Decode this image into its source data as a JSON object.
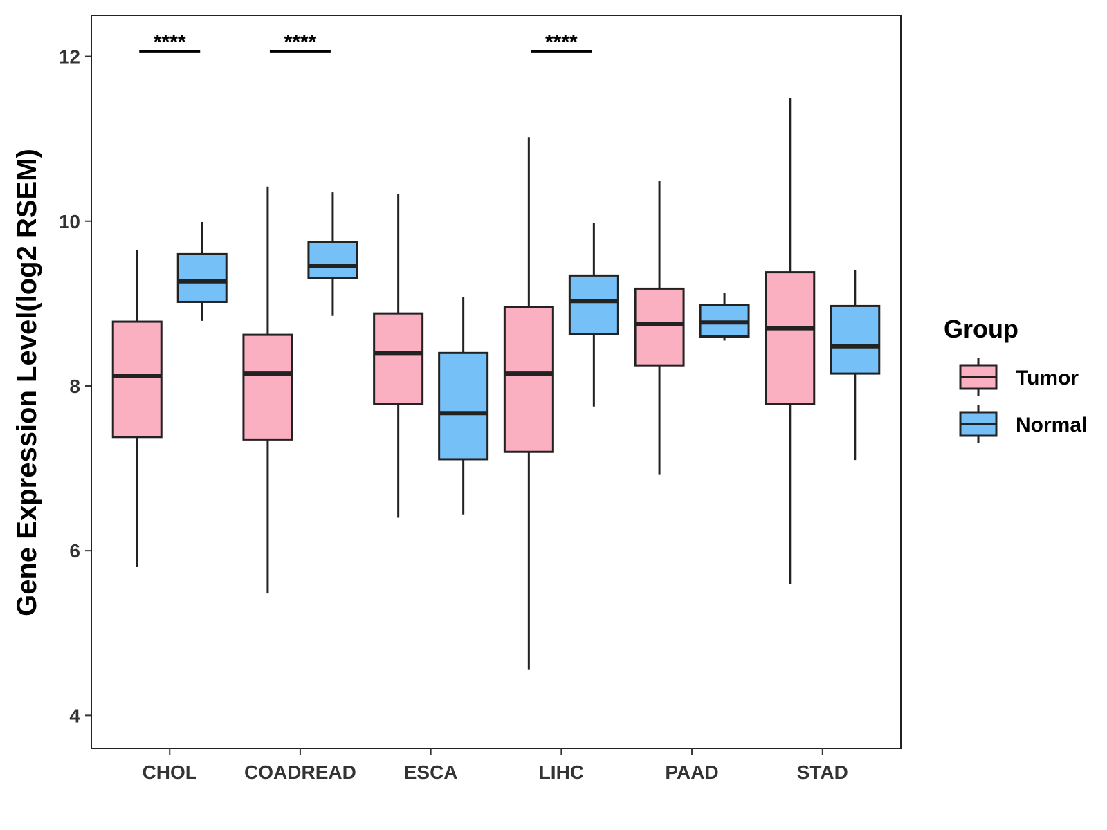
{
  "chart_data": {
    "type": "box",
    "title": "",
    "xlabel": "",
    "ylabel": "Gene Expression Level(log2 RSEM)",
    "ylim": [
      3.6,
      12.5
    ],
    "yticks": [
      4,
      6,
      8,
      10,
      12
    ],
    "grid": false,
    "legend_position": "right",
    "categories": [
      "CHOL",
      "COADREAD",
      "ESCA",
      "LIHC",
      "PAAD",
      "STAD"
    ],
    "legend": {
      "title": "Group",
      "entries": [
        {
          "name": "Tumor",
          "color": "#FBB0C1"
        },
        {
          "name": "Normal",
          "color": "#76C0F8"
        }
      ]
    },
    "series": [
      {
        "name": "Tumor",
        "color": "#FBB0C1",
        "boxes": [
          {
            "category": "CHOL",
            "whisker_low": 5.8,
            "q1": 7.38,
            "median": 8.12,
            "q3": 8.78,
            "whisker_high": 9.65
          },
          {
            "category": "COADREAD",
            "whisker_low": 5.48,
            "q1": 7.35,
            "median": 8.15,
            "q3": 8.62,
            "whisker_high": 10.42
          },
          {
            "category": "ESCA",
            "whisker_low": 6.4,
            "q1": 7.78,
            "median": 8.4,
            "q3": 8.88,
            "whisker_high": 10.33
          },
          {
            "category": "LIHC",
            "whisker_low": 4.56,
            "q1": 7.2,
            "median": 8.15,
            "q3": 8.96,
            "whisker_high": 11.02
          },
          {
            "category": "PAAD",
            "whisker_low": 6.92,
            "q1": 8.25,
            "median": 8.75,
            "q3": 9.18,
            "whisker_high": 10.49
          },
          {
            "category": "STAD",
            "whisker_low": 5.59,
            "q1": 7.78,
            "median": 8.7,
            "q3": 9.38,
            "whisker_high": 11.5
          }
        ]
      },
      {
        "name": "Normal",
        "color": "#76C0F8",
        "boxes": [
          {
            "category": "CHOL",
            "whisker_low": 8.79,
            "q1": 9.02,
            "median": 9.27,
            "q3": 9.6,
            "whisker_high": 9.99
          },
          {
            "category": "COADREAD",
            "whisker_low": 8.85,
            "q1": 9.31,
            "median": 9.46,
            "q3": 9.75,
            "whisker_high": 10.35
          },
          {
            "category": "ESCA",
            "whisker_low": 6.44,
            "q1": 7.11,
            "median": 7.67,
            "q3": 8.4,
            "whisker_high": 9.08
          },
          {
            "category": "LIHC",
            "whisker_low": 7.75,
            "q1": 8.63,
            "median": 9.03,
            "q3": 9.34,
            "whisker_high": 9.98
          },
          {
            "category": "PAAD",
            "whisker_low": 8.55,
            "q1": 8.6,
            "median": 8.77,
            "q3": 8.98,
            "whisker_high": 9.13
          },
          {
            "category": "STAD",
            "whisker_low": 7.1,
            "q1": 8.15,
            "median": 8.48,
            "q3": 8.97,
            "whisker_high": 9.41
          }
        ]
      }
    ],
    "annotations": [
      {
        "category": "CHOL",
        "text": "****",
        "y": 12.06
      },
      {
        "category": "COADREAD",
        "text": "****",
        "y": 12.06
      },
      {
        "category": "LIHC",
        "text": "****",
        "y": 12.06
      }
    ]
  }
}
